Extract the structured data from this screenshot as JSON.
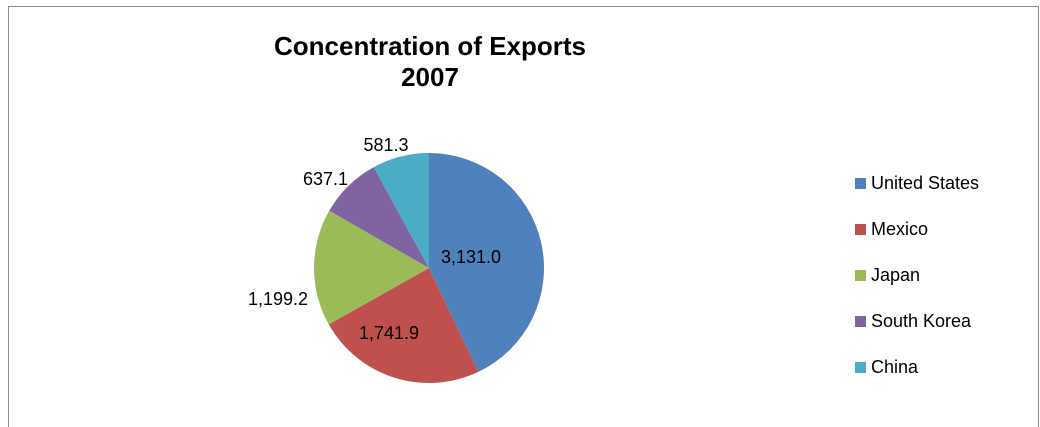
{
  "chart_data": {
    "type": "pie",
    "title": "Concentration of Exports",
    "subtitle": "2007",
    "categories": [
      "United States",
      "Mexico",
      "Japan",
      "South Korea",
      "China"
    ],
    "values": [
      3131.0,
      1741.9,
      1199.2,
      637.1,
      581.3
    ],
    "data_labels": [
      "3,131.0",
      "1,741.9",
      "1,199.2",
      "637.1",
      "581.3"
    ],
    "colors": [
      "#4f81bd",
      "#c0504d",
      "#9bbb59",
      "#8064a2",
      "#4bacc6"
    ],
    "legend_position": "right"
  }
}
